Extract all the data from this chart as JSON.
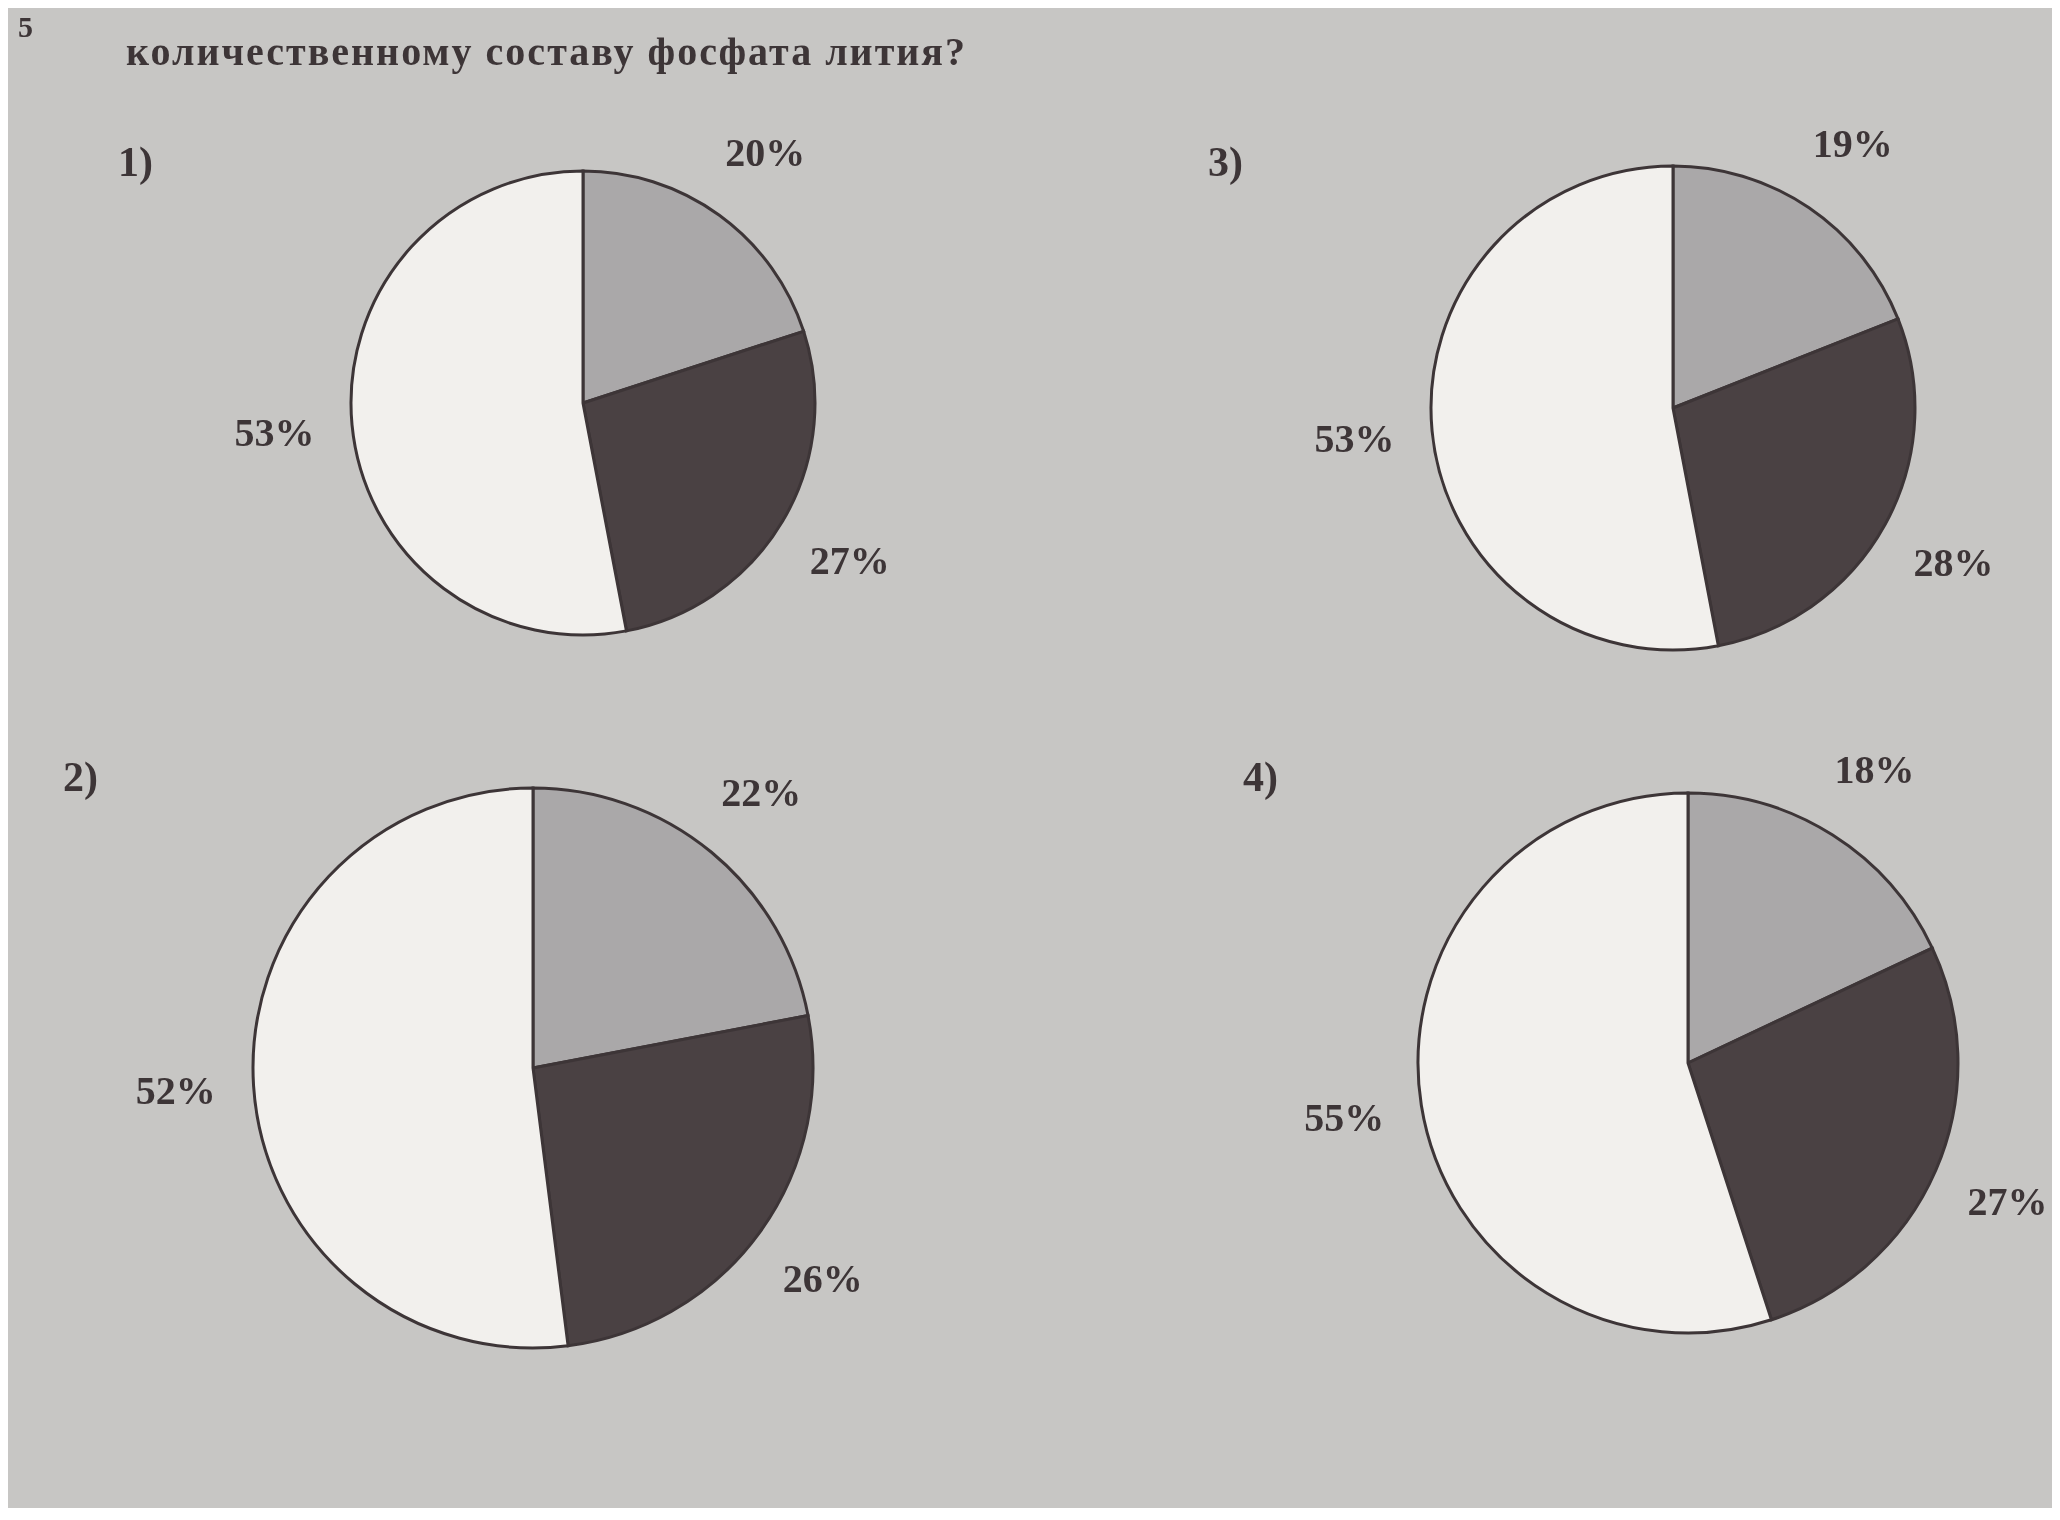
{
  "chart_data": [
    {
      "type": "other",
      "title": "количественному составу фосфата лития?",
      "annotations": [
        "5"
      ]
    },
    {
      "type": "pie",
      "title": "1)",
      "categories": [
        null,
        null,
        null
      ],
      "values": [
        20,
        27,
        53
      ],
      "colors": [
        "#aaa8a9",
        "#4a4143",
        "#f2f0ed"
      ],
      "value_labels": [
        "20%",
        "27%",
        "53%"
      ]
    },
    {
      "type": "pie",
      "title": "3)",
      "categories": [
        null,
        null,
        null
      ],
      "values": [
        19,
        28,
        53
      ],
      "colors": [
        "#aaa8a9",
        "#4a4143",
        "#f2f0ed"
      ],
      "value_labels": [
        "19%",
        "28%",
        "53%"
      ]
    },
    {
      "type": "pie",
      "title": "2)",
      "categories": [
        null,
        null,
        null
      ],
      "values": [
        22,
        26,
        52
      ],
      "colors": [
        "#aaa8a9",
        "#4a4143",
        "#f2f0ed"
      ],
      "value_labels": [
        "22%",
        "26%",
        "52%"
      ]
    },
    {
      "type": "pie",
      "title": "4)",
      "categories": [
        null,
        null,
        null
      ],
      "values": [
        18,
        27,
        55
      ],
      "colors": [
        "#aaa8a9",
        "#4a4143",
        "#f2f0ed"
      ],
      "value_labels": [
        "18%",
        "27%",
        "55%"
      ]
    }
  ]
}
